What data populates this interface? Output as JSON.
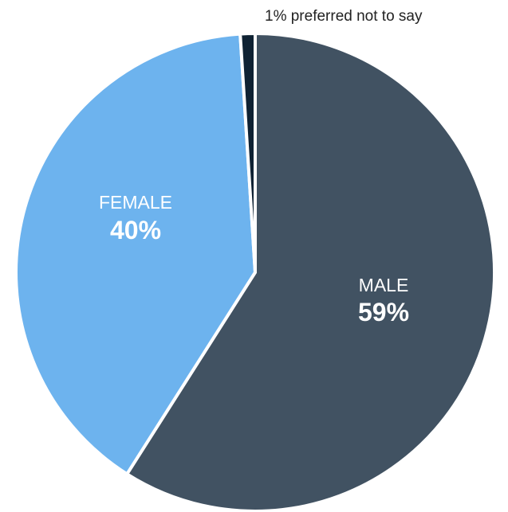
{
  "chart_data": {
    "type": "pie",
    "slices": [
      {
        "label": "MALE",
        "value": 59,
        "value_label": "59%",
        "color": "#415262"
      },
      {
        "label": "FEMALE",
        "value": 40,
        "value_label": "40%",
        "color": "#6db3ee"
      },
      {
        "label": "preferred not to say",
        "value": 1,
        "value_label": "1% preferred not to say",
        "color": "#0f2233"
      }
    ],
    "legend": "none",
    "start_angle": "12 o'clock",
    "direction": "clockwise"
  }
}
